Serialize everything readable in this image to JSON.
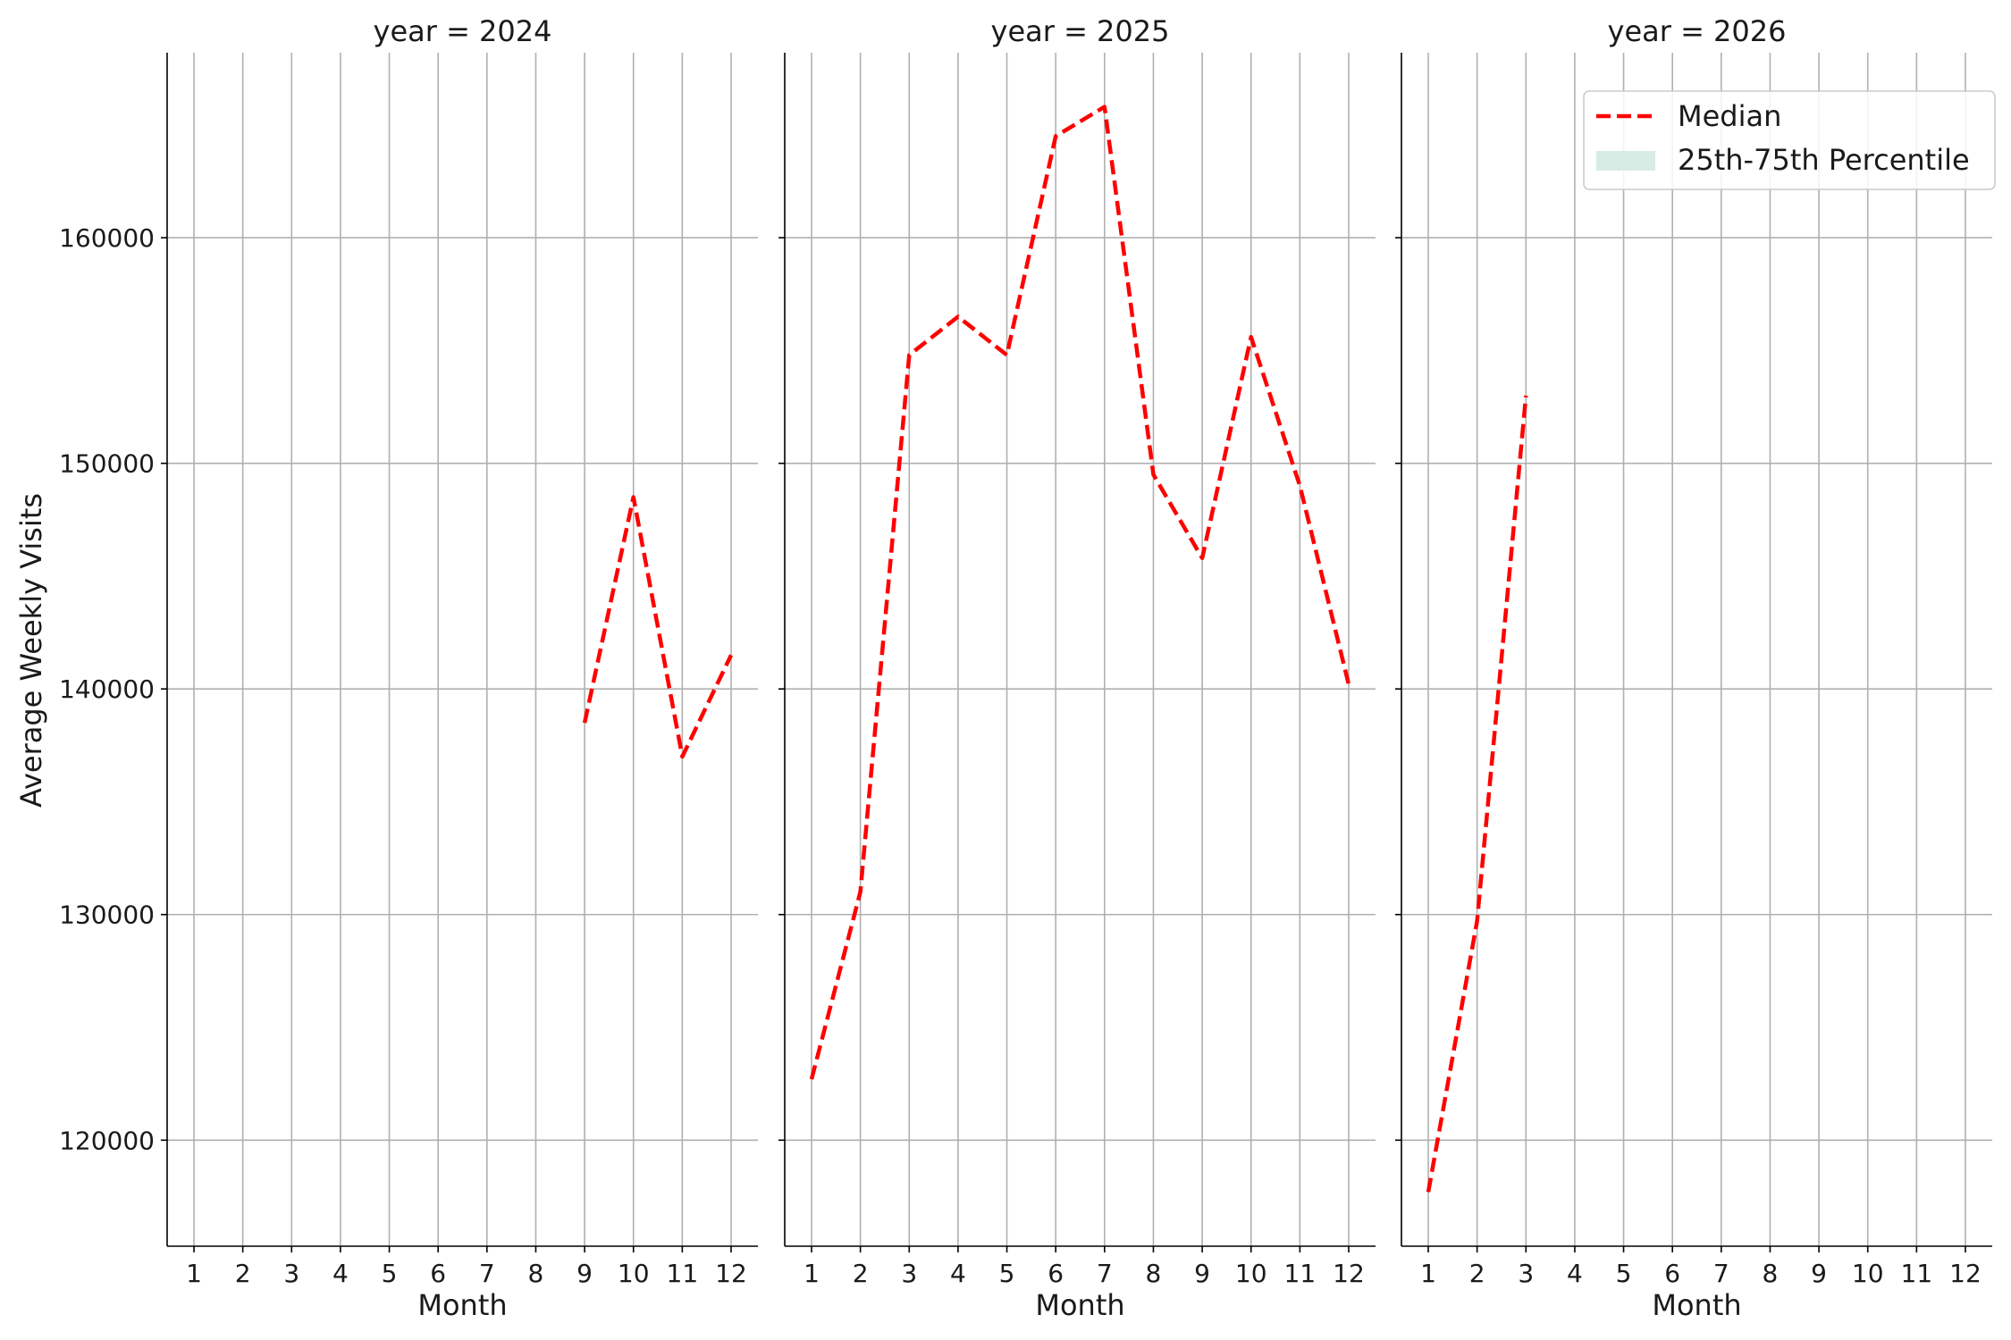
{
  "chart_data": {
    "type": "line",
    "facet_label": "year",
    "ylabel": "Average Weekly Visits",
    "xlabel": "Month",
    "ylim": [
      115300,
      168200
    ],
    "y_ticks": [
      120000,
      130000,
      140000,
      150000,
      160000
    ],
    "x_ticks": [
      1,
      2,
      3,
      4,
      5,
      6,
      7,
      8,
      9,
      10,
      11,
      12
    ],
    "grid": true,
    "legend": {
      "placement": "top-right",
      "entries": [
        {
          "label": "Median",
          "style": "dashed-line",
          "color": "#ff0000"
        },
        {
          "label": "25th-75th Percentile",
          "style": "patch",
          "color": "#d6ece4"
        }
      ]
    },
    "panels": [
      {
        "title": "year = 2024",
        "series": [
          {
            "name": "Median",
            "x": [
              9,
              10,
              11,
              12
            ],
            "y": [
              138500,
              148500,
              137000,
              141500
            ]
          }
        ]
      },
      {
        "title": "year = 2025",
        "series": [
          {
            "name": "Median",
            "x": [
              1,
              2,
              3,
              4,
              5,
              6,
              7,
              8,
              9,
              10,
              11,
              12
            ],
            "y": [
              122700,
              131000,
              154800,
              156500,
              154800,
              164500,
              165800,
              149500,
              145800,
              155600,
              149000,
              140200
            ]
          }
        ]
      },
      {
        "title": "year = 2026",
        "series": [
          {
            "name": "Median",
            "x": [
              1,
              2,
              3
            ],
            "y": [
              117700,
              129700,
              153000
            ]
          }
        ]
      }
    ]
  }
}
